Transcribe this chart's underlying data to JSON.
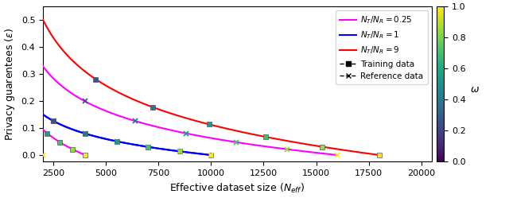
{
  "xlabel": "Effective dataset size ($N_{eff}$)",
  "ylabel": "Privacy guarentees ($\\epsilon$)",
  "xlim": [
    2000,
    20500
  ],
  "ylim": [
    -0.025,
    0.55
  ],
  "xticks": [
    2500,
    5000,
    7500,
    10000,
    12500,
    15000,
    17500,
    20000
  ],
  "yticks": [
    0.0,
    0.1,
    0.2,
    0.3,
    0.4,
    0.5
  ],
  "N_total": 20000,
  "ratios": [
    {
      "r": 0.25,
      "color": "#ff00ff",
      "C_train": 0.283,
      "C_ref": 0.05,
      "label": "$N_T/N_R = 0.25$"
    },
    {
      "r": 1.0,
      "color": "#0000ff",
      "C_train": 0.141,
      "C_ref": 0.141,
      "label": "$N_T/N_R = 1$"
    },
    {
      "r": 9.0,
      "color": "#ff0000",
      "C_train": 0.474,
      "C_ref": 0.05,
      "label": "$N_T/N_R = 9$"
    }
  ],
  "marker_omegas_train": [
    0.25,
    0.4,
    0.55,
    0.7,
    0.85,
    1.0
  ],
  "marker_omegas_ref": [
    0.25,
    0.4,
    0.55,
    0.7,
    0.85,
    1.0
  ],
  "colorbar_label": "$\\omega$",
  "colorbar_ticks": [
    0.0,
    0.2,
    0.4,
    0.6,
    0.8,
    1.0
  ],
  "figsize": [
    6.4,
    2.49
  ],
  "dpi": 100
}
